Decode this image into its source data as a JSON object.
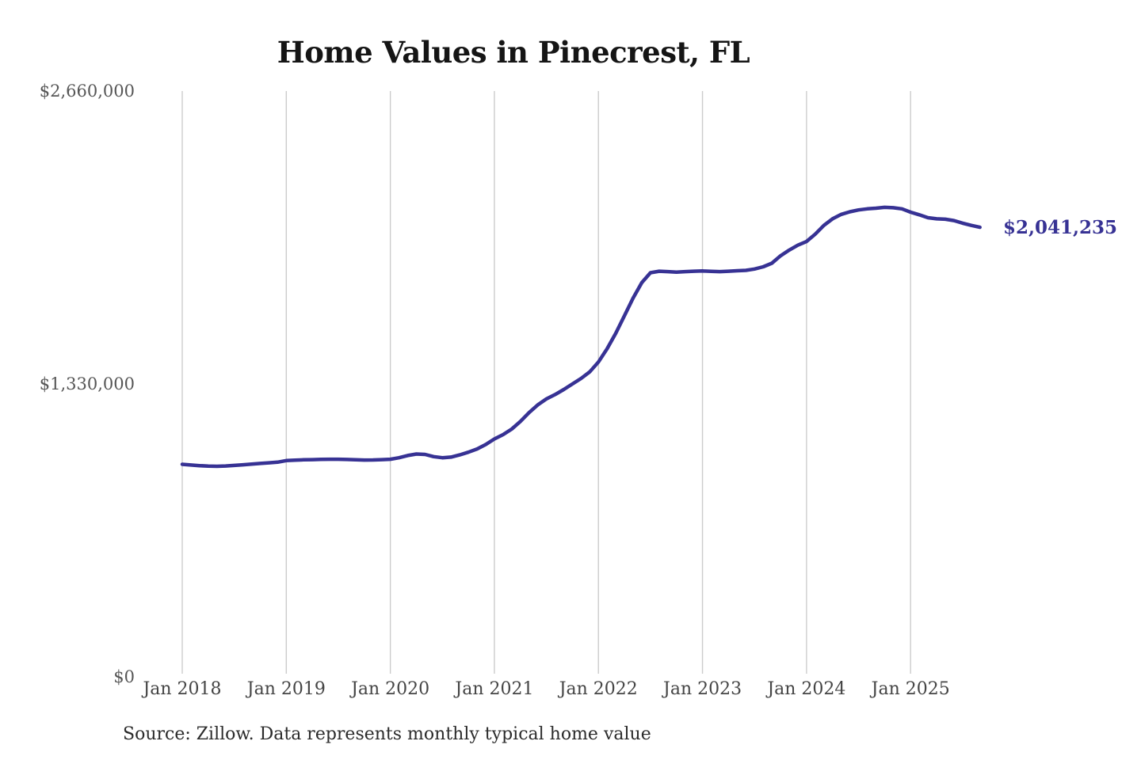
{
  "title": "Home Values in Pinecrest, FL",
  "source": "Source: Zillow. Data represents monthly typical home value",
  "colors": {
    "line": "#373294",
    "gridline": "#cccccc",
    "title_text": "#151515",
    "axis_text": "#555555",
    "background": "#ffffff"
  },
  "chart_data": {
    "type": "line",
    "title": "Home Values in Pinecrest, FL",
    "series_name": "Monthly typical home value",
    "xlabel": "",
    "ylabel": "",
    "ylim": [
      0,
      2660000
    ],
    "grid": "vertical-only",
    "legend": "none",
    "end_label": "$2,041,235",
    "end_value": 2041235,
    "line_color": "#373294",
    "y_ticks": [
      {
        "label": "$2,660,000",
        "value": 2660000
      },
      {
        "label": "$1,330,000",
        "value": 1330000
      },
      {
        "label": "$0",
        "value": 0
      }
    ],
    "x_ticks": [
      {
        "label": "Jan 2018",
        "month": 0
      },
      {
        "label": "Jan 2019",
        "month": 12
      },
      {
        "label": "Jan 2020",
        "month": 24
      },
      {
        "label": "Jan 2021",
        "month": 36
      },
      {
        "label": "Jan 2022",
        "month": 48
      },
      {
        "label": "Jan 2023",
        "month": 60
      },
      {
        "label": "Jan 2024",
        "month": 72
      },
      {
        "label": "Jan 2025",
        "month": 84
      }
    ],
    "x": [
      "2018-01",
      "2018-02",
      "2018-03",
      "2018-04",
      "2018-05",
      "2018-06",
      "2018-07",
      "2018-08",
      "2018-09",
      "2018-10",
      "2018-11",
      "2018-12",
      "2019-01",
      "2019-02",
      "2019-03",
      "2019-04",
      "2019-05",
      "2019-06",
      "2019-07",
      "2019-08",
      "2019-09",
      "2019-10",
      "2019-11",
      "2019-12",
      "2020-01",
      "2020-02",
      "2020-03",
      "2020-04",
      "2020-05",
      "2020-06",
      "2020-07",
      "2020-08",
      "2020-09",
      "2020-10",
      "2020-11",
      "2020-12",
      "2021-01",
      "2021-02",
      "2021-03",
      "2021-04",
      "2021-05",
      "2021-06",
      "2021-07",
      "2021-08",
      "2021-09",
      "2021-10",
      "2021-11",
      "2021-12",
      "2022-01",
      "2022-02",
      "2022-03",
      "2022-04",
      "2022-05",
      "2022-06",
      "2022-07",
      "2022-08",
      "2022-09",
      "2022-10",
      "2022-11",
      "2022-12",
      "2023-01",
      "2023-02",
      "2023-03",
      "2023-04",
      "2023-05",
      "2023-06",
      "2023-07",
      "2023-08",
      "2023-09",
      "2023-10",
      "2023-11",
      "2023-12",
      "2024-01",
      "2024-02",
      "2024-03",
      "2024-04",
      "2024-05",
      "2024-06",
      "2024-07",
      "2024-08",
      "2024-09",
      "2024-10",
      "2024-11",
      "2024-12",
      "2025-01",
      "2025-02",
      "2025-03",
      "2025-04",
      "2025-05",
      "2025-06",
      "2025-07",
      "2025-08",
      "2025-09"
    ],
    "values": [
      965000,
      962000,
      959000,
      957000,
      956000,
      957500,
      960000,
      963000,
      966000,
      969000,
      972000,
      975000,
      982000,
      984000,
      985500,
      986500,
      987500,
      988000,
      988000,
      987000,
      985500,
      984500,
      985000,
      986500,
      988000,
      995000,
      1005000,
      1012000,
      1010000,
      1000000,
      995000,
      998000,
      1008000,
      1020000,
      1035000,
      1055000,
      1080000,
      1100000,
      1125000,
      1160000,
      1200000,
      1235000,
      1262000,
      1282000,
      1305000,
      1330000,
      1355000,
      1385000,
      1430000,
      1490000,
      1560000,
      1640000,
      1720000,
      1790000,
      1835000,
      1842000,
      1840000,
      1838000,
      1840000,
      1842000,
      1843000,
      1841000,
      1840000,
      1842000,
      1844000,
      1846000,
      1852000,
      1862000,
      1878000,
      1912000,
      1938000,
      1960000,
      1977000,
      2010000,
      2050000,
      2080000,
      2100000,
      2112000,
      2120000,
      2125000,
      2128000,
      2132000,
      2130000,
      2125000,
      2110000,
      2098000,
      2085000,
      2080000,
      2078000,
      2072000,
      2060000,
      2050000,
      2041235
    ]
  }
}
